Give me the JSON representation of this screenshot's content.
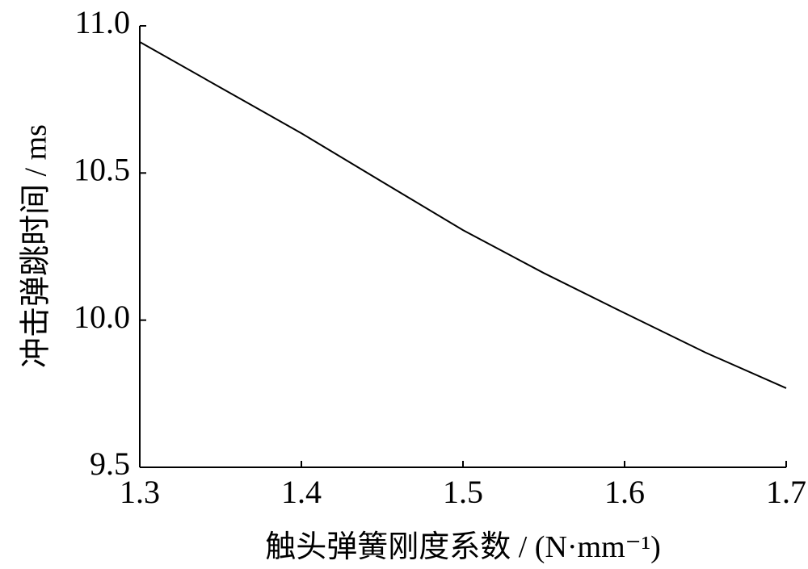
{
  "chart_data": {
    "type": "line",
    "x_label": "触头弹簧刚度系数 / (N·mm⁻¹)",
    "y_label": "冲击弹跳时间 / ms",
    "x": [
      1.3,
      1.35,
      1.4,
      1.45,
      1.5,
      1.55,
      1.6,
      1.65,
      1.7
    ],
    "series": [
      {
        "color": "#000000",
        "values": [
          10.945,
          10.79,
          10.635,
          10.47,
          10.306,
          10.16,
          10.024,
          9.89,
          9.769
        ]
      }
    ],
    "xlim": [
      1.3,
      1.7
    ],
    "xticks": [
      1.3,
      1.4,
      1.5,
      1.6,
      1.7
    ],
    "ylim": [
      9.5,
      11.0
    ],
    "yticks": [
      {
        "value": 9.5,
        "label": "9.5"
      },
      {
        "value": 10.0,
        "label": "10.0"
      },
      {
        "value": 10.5,
        "label": "10.5"
      },
      {
        "value": 11.0,
        "label": "11.0"
      }
    ],
    "grid": false
  }
}
